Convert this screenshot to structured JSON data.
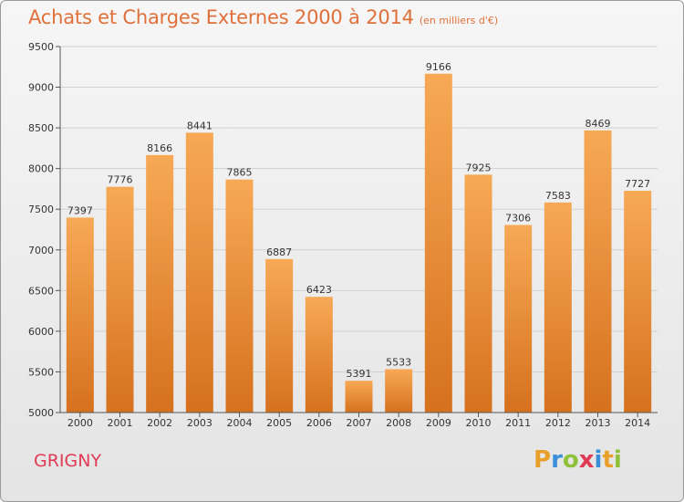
{
  "chart_data": {
    "type": "bar",
    "title": "Achats et Charges Externes 2000 à 2014",
    "unit": "(en milliers d'€)",
    "categories": [
      "2000",
      "2001",
      "2002",
      "2003",
      "2004",
      "2005",
      "2006",
      "2007",
      "2008",
      "2009",
      "2010",
      "2011",
      "2012",
      "2013",
      "2014"
    ],
    "values": [
      7397,
      7776,
      8166,
      8441,
      7865,
      6887,
      6423,
      5391,
      5533,
      9166,
      7925,
      7306,
      7583,
      8469,
      7727
    ],
    "ylim": [
      5000,
      9500
    ],
    "yticks": [
      5000,
      5500,
      6000,
      6500,
      7000,
      7500,
      8000,
      8500,
      9000,
      9500
    ],
    "grid": true,
    "bar_color_light": "#f7a955",
    "bar_color_dark": "#d6711e"
  },
  "location": "GRIGNY",
  "logo": {
    "letters": [
      "P",
      "r",
      "o",
      "x",
      "i",
      "t",
      "i"
    ],
    "colors": [
      "#e8a02a",
      "#3a8fd6",
      "#8fc23a",
      "#e03a55",
      "#3a8fd6",
      "#e8a02a",
      "#8fc23a"
    ]
  }
}
